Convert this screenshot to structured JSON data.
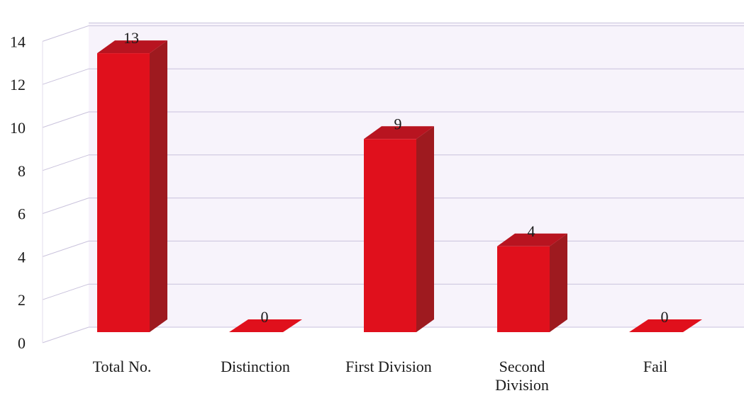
{
  "chart_data": {
    "type": "bar",
    "categories": [
      "Total No.",
      "Distinction",
      "First Division",
      "Second Division",
      "Fail"
    ],
    "values": [
      13,
      0,
      9,
      4,
      0
    ],
    "data_labels": [
      "13",
      "0",
      "9",
      "4",
      "0"
    ],
    "y_ticks": [
      "0",
      "2",
      "4",
      "6",
      "8",
      "10",
      "12",
      "14"
    ],
    "ylim": [
      0,
      14
    ],
    "grid": true,
    "style": "3d-column",
    "colors": {
      "bar_front": "#e0101c",
      "bar_side": "#9e1a1f",
      "bar_top": "#b81420",
      "grid": "#c9c2dc",
      "wall": "#f7f3fb"
    }
  }
}
